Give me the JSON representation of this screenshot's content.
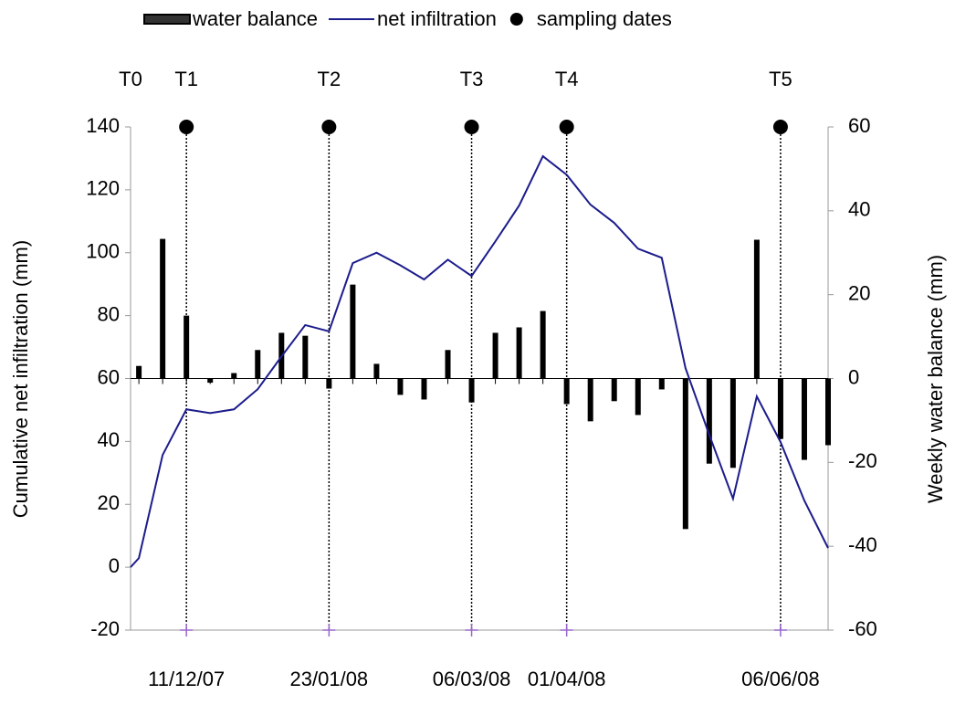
{
  "chart_data": {
    "type": "bar-line",
    "ylabel": "Cumulative net infiltration (mm)",
    "y2label": "Weekly water balance (mm)",
    "xlim": [
      -0.35,
      29
    ],
    "ylim": [
      -20,
      140
    ],
    "yticks": [
      -20,
      0,
      20,
      40,
      60,
      80,
      100,
      120,
      140
    ],
    "y2lim": [
      -60,
      60
    ],
    "y2ticks": [
      -60,
      -40,
      -20,
      0,
      20,
      40,
      60
    ],
    "legend": "top",
    "series": [
      {
        "name": "water balance",
        "type": "bar",
        "axis": "y2",
        "color": "#000000",
        "x": [
          0,
          1,
          2,
          3,
          4,
          5,
          6,
          7,
          8,
          9,
          10,
          11,
          12,
          13,
          14,
          15,
          16,
          17,
          18,
          19,
          20,
          21,
          22,
          23,
          24,
          25,
          26,
          27,
          28,
          29
        ],
        "values": [
          3,
          33.3,
          15,
          -1,
          1.3,
          6.8,
          10.9,
          10.2,
          -2.4,
          22.4,
          3.5,
          -3.9,
          -5,
          6.8,
          -5.7,
          10.9,
          12.2,
          16.1,
          -6.1,
          -10.2,
          -5.4,
          -8.7,
          -2.6,
          -35.9,
          -20.3,
          -21.3,
          33.1,
          -14.4,
          -19.4,
          -15.9
        ]
      },
      {
        "name": "net infiltration",
        "type": "line",
        "axis": "y",
        "color": "#1c1c8c",
        "x": [
          -0.35,
          0,
          1,
          2,
          3,
          4,
          5,
          6,
          7,
          8,
          9,
          10,
          11,
          12,
          13,
          14,
          15,
          16,
          17,
          18,
          19,
          20,
          21,
          22,
          23,
          24,
          25,
          26,
          27,
          28,
          29
        ],
        "values": [
          0,
          2.9,
          35.7,
          50.2,
          49,
          50.2,
          56.6,
          67,
          77,
          75,
          96.7,
          100,
          96,
          91.5,
          97.8,
          92.6,
          103.6,
          115,
          130.7,
          124.8,
          115.3,
          109.5,
          101.3,
          98.4,
          63.3,
          42.1,
          21.8,
          54.3,
          39.8,
          21.2,
          6.1
        ]
      }
    ],
    "sampling": {
      "name": "sampling dates",
      "color": "#000000",
      "labels": [
        "T0",
        "T1",
        "T2",
        "T3",
        "T4",
        "T5"
      ],
      "x": [
        -0.35,
        2,
        8,
        14,
        18,
        27
      ],
      "dates": [
        null,
        "11/12/07",
        "23/01/08",
        "06/03/08",
        "01/04/08",
        "06/06/08"
      ]
    }
  }
}
